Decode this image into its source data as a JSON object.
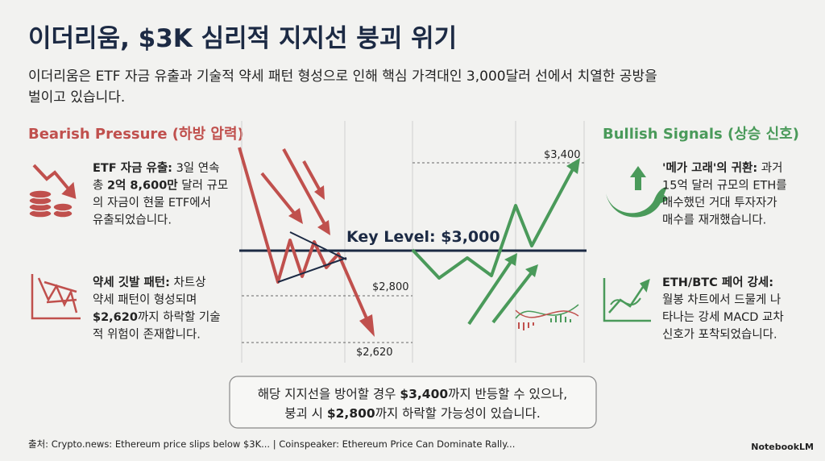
{
  "title": "이더리움, $3K 심리적 지지선 붕괴 위기",
  "subtitle": [
    "이더리움은 ETF 자금 유출과 기술적 약세 패턴 형성으로 인해 핵심 가격대인 3,000달러 선에서 치열한 공방을",
    "벌이고 있습니다."
  ],
  "bearish": {
    "heading": "Bearish Pressure (하방 압력)",
    "items": [
      {
        "lines": [
          [
            {
              "text": "ETF 자금 유출:",
              "bold": true
            },
            {
              "text": " 3일 연속"
            }
          ],
          [
            {
              "text": "총 "
            },
            {
              "text": "2억 8,600만",
              "bold": true
            },
            {
              "text": " 달러 규모"
            }
          ],
          [
            {
              "text": "의 자금이 현물 ETF에서"
            }
          ],
          [
            {
              "text": "유출되었습니다."
            }
          ]
        ]
      },
      {
        "lines": [
          [
            {
              "text": "약세 깃발 패턴:",
              "bold": true
            },
            {
              "text": " 차트상"
            }
          ],
          [
            {
              "text": "약세 패턴이 형성되며"
            }
          ],
          [
            {
              "text": "$2,620",
              "bold": true
            },
            {
              "text": "까지 하락할 기술"
            }
          ],
          [
            {
              "text": "적 위험이 존재합니다."
            }
          ]
        ]
      }
    ]
  },
  "bullish": {
    "heading": "Bullish Signals (상승 신호)",
    "items": [
      {
        "lines": [
          [
            {
              "text": "'메가 고래'의 귀환:",
              "bold": true
            },
            {
              "text": " 과거"
            }
          ],
          [
            {
              "text": "15억 달러 규모의 ETH를"
            }
          ],
          [
            {
              "text": "매수했던 거대 투자자가"
            }
          ],
          [
            {
              "text": "매수를 재개했습니다."
            }
          ]
        ]
      },
      {
        "lines": [
          [
            {
              "text": "ETH/BTC 페어 강세:",
              "bold": true
            }
          ],
          [
            {
              "text": "월봉 차트에서 드물게 나"
            }
          ],
          [
            {
              "text": "타나는 강세 MACD 교차"
            }
          ],
          [
            {
              "text": "신호가 포착되었습니다."
            }
          ]
        ]
      }
    ]
  },
  "diagram": {
    "key_level": "Key Level: $3,000",
    "price_labels": [
      "$3,400",
      "$2,800",
      "$2,620"
    ]
  },
  "callout": {
    "lines": [
      [
        {
          "text": "해당 지지선을 방어할 경우 "
        },
        {
          "text": "$3,400",
          "bold": true
        },
        {
          "text": "까지 반등할 수 있으나,"
        }
      ],
      [
        {
          "text": "붕괴 시 "
        },
        {
          "text": "$2,800",
          "bold": true
        },
        {
          "text": "까지 하락할 가능성이 있습니다."
        }
      ]
    ]
  },
  "source": "출처: Crypto.news: Ethereum price slips below $3K... | Coinspeaker: Ethereum Price Can Dominate Rally...",
  "brand": "NotebookLM"
}
